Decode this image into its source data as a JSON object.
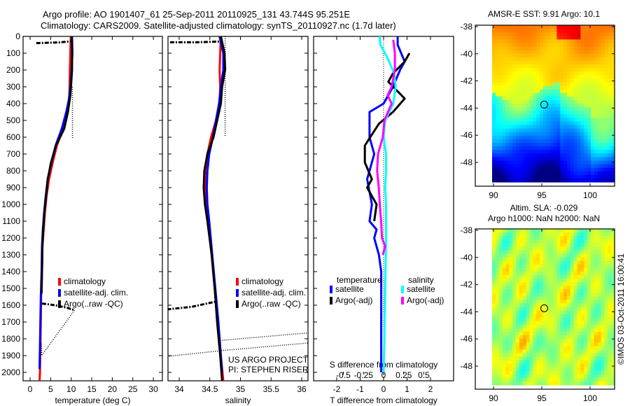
{
  "header": {
    "line1": "Argo profile: AO 1901407_61 25-Sep-2011 20110925_131 43.744S 95.251E",
    "line2": "Climatology: CARS2009. Satellite-adjusted climatology: synTS_20110927.nc (1.7d later)"
  },
  "colors": {
    "climatology": "#ff0000",
    "satellite": "#0000ff",
    "argo": "#000000",
    "sal_satellite": "#00ffff",
    "sal_argo": "#ff00ff"
  },
  "chart_data": [
    {
      "type": "line",
      "id": "temperature",
      "xlabel": "temperature (deg C)",
      "ylabel": "",
      "xlim": [
        -1.7,
        32
      ],
      "ylim": [
        2050,
        0
      ],
      "xticks": [
        0,
        5,
        10,
        15,
        20,
        25,
        30
      ],
      "yticks": [
        0,
        100,
        200,
        300,
        400,
        500,
        600,
        700,
        800,
        900,
        1000,
        1100,
        1200,
        1300,
        1400,
        1500,
        1600,
        1700,
        1800,
        1900,
        2000
      ],
      "legend": {
        "placement": "lower-middle",
        "entries": [
          "climatology",
          "satellite-adj. clim.",
          "Argo(..raw -QC)"
        ]
      },
      "series": [
        {
          "name": "climatology",
          "color": "#ff0000",
          "style": "solid",
          "x": [
            9.9,
            9.8,
            9.7,
            9.6,
            9.5,
            9.0,
            8.0,
            6.5,
            5.5,
            4.6,
            4.0,
            3.6,
            3.3,
            3.0,
            2.9,
            2.7,
            2.6,
            2.5,
            2.4,
            2.3
          ],
          "y": [
            0,
            100,
            200,
            300,
            380,
            450,
            550,
            650,
            750,
            850,
            950,
            1050,
            1150,
            1250,
            1400,
            1550,
            1700,
            1850,
            2000,
            2050
          ]
        },
        {
          "name": "satellite-adj. clim.",
          "color": "#0000ff",
          "style": "solid",
          "x": [
            10.2,
            10.3,
            10.1,
            9.8,
            9.4,
            8.8,
            7.7,
            6.2,
            5.2,
            4.3,
            3.8,
            3.4,
            3.1,
            2.9,
            2.8,
            2.6,
            2.5,
            2.4,
            2.3
          ],
          "y": [
            0,
            100,
            200,
            300,
            380,
            450,
            550,
            650,
            750,
            850,
            950,
            1050,
            1150,
            1250,
            1400,
            1550,
            1700,
            1850,
            1980
          ]
        },
        {
          "name": "Argo(..raw -QC)",
          "color": "#000000",
          "style": "solid",
          "x": [
            10.1,
            10.2,
            10.2,
            10.0,
            9.8,
            9.2,
            8.3,
            6.3,
            5.1,
            4.3,
            3.9,
            3.5,
            3.2,
            3.0,
            2.9,
            2.8
          ],
          "y": [
            0,
            100,
            200,
            280,
            350,
            450,
            550,
            650,
            750,
            850,
            950,
            1050,
            1150,
            1250,
            1400,
            1530
          ]
        },
        {
          "name": "Argo raw dashdot",
          "color": "#000000",
          "style": "dashdot",
          "x": [
            1.5,
            4,
            7,
            9.9
          ],
          "y": [
            40,
            38,
            36,
            30
          ]
        },
        {
          "name": "Argo raw dashdot deep",
          "color": "#000000",
          "style": "dashdot",
          "x": [
            2.9,
            6.0,
            9.0,
            10.8
          ],
          "y": [
            1590,
            1600,
            1615,
            1630
          ]
        },
        {
          "name": "Argo raw dotted",
          "color": "#000000",
          "style": "dotted",
          "x": [
            10.3,
            10.3,
            10.3
          ],
          "y": [
            300,
            450,
            610
          ]
        },
        {
          "name": "Argo raw dotted deep",
          "color": "#000000",
          "style": "dotted",
          "x": [
            10.8,
            2.8,
            2.8
          ],
          "y": [
            1630,
            1900,
            1820
          ]
        }
      ]
    },
    {
      "type": "line",
      "id": "salinity",
      "xlabel": "salinity",
      "xlim": [
        33.8,
        36.1
      ],
      "ylim": [
        2050,
        0
      ],
      "xticks": [
        34,
        34.5,
        35,
        35.5,
        36
      ],
      "legend": {
        "placement": "lower-right",
        "entries": [
          "climatology",
          "satellite-adj. clim.",
          "Argo(..raw -QC)"
        ]
      },
      "annotation": [
        "US ARGO PROJECT",
        "PI: STEPHEN RISER"
      ],
      "series": [
        {
          "name": "climatology",
          "color": "#ff0000",
          "style": "solid",
          "x": [
            34.68,
            34.67,
            34.66,
            34.67,
            34.66,
            34.6,
            34.52,
            34.46,
            34.44,
            34.43,
            34.45,
            34.48,
            34.53,
            34.58,
            34.63,
            34.68,
            34.72
          ],
          "y": [
            0,
            100,
            200,
            300,
            400,
            500,
            600,
            700,
            800,
            900,
            1000,
            1100,
            1300,
            1500,
            1700,
            1900,
            2050
          ]
        },
        {
          "name": "satellite-adj. clim.",
          "color": "#0000ff",
          "style": "solid",
          "x": [
            34.66,
            34.72,
            34.72,
            34.68,
            34.65,
            34.6,
            34.55,
            34.49,
            34.46,
            34.45,
            34.46,
            34.49,
            34.54,
            34.59,
            34.64,
            34.68,
            34.7
          ],
          "y": [
            0,
            100,
            200,
            300,
            400,
            500,
            600,
            700,
            800,
            900,
            1000,
            1100,
            1300,
            1500,
            1700,
            1900,
            2000
          ]
        },
        {
          "name": "Argo(..raw -QC)",
          "color": "#000000",
          "style": "solid",
          "x": [
            34.68,
            34.74,
            34.75,
            34.7,
            34.68,
            34.62,
            34.56,
            34.46,
            34.41,
            34.4,
            34.42,
            34.46,
            34.53,
            34.58,
            34.62,
            34.67,
            34.7
          ],
          "y": [
            0,
            100,
            200,
            300,
            400,
            500,
            600,
            700,
            800,
            900,
            1000,
            1100,
            1300,
            1500,
            1700,
            1900,
            2050
          ]
        },
        {
          "name": "Argo raw dashdot",
          "color": "#000000",
          "style": "dashdot",
          "x": [
            33.85,
            34.3,
            34.7
          ],
          "y": [
            35,
            35,
            30
          ]
        },
        {
          "name": "Argo raw dashdot deep",
          "color": "#000000",
          "style": "dashdot",
          "x": [
            33.8,
            34.2,
            34.58
          ],
          "y": [
            1625,
            1610,
            1580
          ]
        },
        {
          "name": "Argo raw dotted",
          "color": "#000000",
          "style": "dotted",
          "x": [
            34.75,
            34.75,
            34.75
          ],
          "y": [
            0,
            300,
            600
          ]
        },
        {
          "name": "Argo raw dotted deep 1",
          "color": "#000000",
          "style": "dotted",
          "x": [
            34.67,
            35.3,
            36.1
          ],
          "y": [
            1810,
            1790,
            1765
          ]
        },
        {
          "name": "Argo raw dotted deep 2",
          "color": "#000000",
          "style": "dotted",
          "x": [
            33.8,
            34.7,
            36.1
          ],
          "y": [
            1905,
            1870,
            1825
          ]
        }
      ]
    },
    {
      "type": "line",
      "id": "difference",
      "xlabel": "T difference from climatology",
      "x2label": "S difference from climatology",
      "xlim": [
        -3,
        3
      ],
      "x2lim": [
        -0.75,
        0.75
      ],
      "ylim": [
        2050,
        0
      ],
      "xticks": [
        -2,
        -1,
        0,
        1,
        2
      ],
      "x2ticks": [
        "-0.5",
        "-0.25",
        "0",
        "0.25",
        "0.5"
      ],
      "legend": {
        "placement": "lower-middle",
        "groups": [
          {
            "title": "temperature",
            "entries": [
              "satellite",
              "Argo(-adj)"
            ]
          },
          {
            "title": "salinity",
            "entries": [
              "satellite",
              "Argo(-adj)"
            ]
          }
        ]
      },
      "series": [
        {
          "name": "temperature satellite",
          "color": "#0000ff",
          "axis": "T",
          "x": [
            0.6,
            0.6,
            0.9,
            0.7,
            0.4,
            0.0,
            -0.6,
            -0.6,
            -0.4,
            -0.7,
            -0.5,
            -0.6,
            -0.3,
            -0.4,
            -0.2,
            -0.1,
            -0.1,
            -0.1
          ],
          "y": [
            0,
            50,
            150,
            200,
            300,
            400,
            450,
            600,
            700,
            850,
            1000,
            1100,
            1150,
            1200,
            1300,
            1400,
            1700,
            2000
          ]
        },
        {
          "name": "temperature Argo(-adj)",
          "color": "#000000",
          "axis": "T",
          "x": [
            1.1,
            0.9,
            0.4,
            0.2,
            0.9,
            0.4,
            -0.2,
            -0.8,
            -0.8,
            -0.5,
            -0.7,
            -0.3,
            -0.4
          ],
          "y": [
            100,
            150,
            220,
            270,
            370,
            450,
            520,
            650,
            750,
            850,
            900,
            1000,
            1100
          ]
        },
        {
          "name": "salinity satellite",
          "color": "#00ffff",
          "axis": "S",
          "x": [
            -0.05,
            -0.04,
            0.05,
            0.13,
            0.15,
            0.12,
            0.02,
            0.0,
            0.03,
            0.03,
            0.02,
            0.03,
            0.03,
            0.02,
            0.01,
            0.0
          ],
          "y": [
            0,
            50,
            130,
            220,
            300,
            400,
            500,
            600,
            700,
            800,
            900,
            1000,
            1200,
            1500,
            1800,
            2000
          ]
        },
        {
          "name": "salinity Argo(-adj)",
          "color": "#ff00ff",
          "axis": "S",
          "x": [
            0.12,
            0.14,
            0.14,
            0.1,
            0.05,
            0.1,
            0.01,
            -0.01,
            -0.07,
            -0.08,
            -0.06,
            -0.04,
            -0.03,
            -0.02,
            0.02,
            -0.01
          ],
          "y": [
            20,
            100,
            200,
            300,
            350,
            400,
            500,
            600,
            700,
            800,
            900,
            1050,
            1100,
            1200,
            1250,
            1300
          ]
        }
      ]
    },
    {
      "type": "heatmap",
      "id": "sst-map",
      "title": "AMSR-E SST: 9.91  Argo: 10.1",
      "xlim": [
        88.5,
        102.5
      ],
      "ylim": [
        -49.7,
        -37.8
      ],
      "xticks": [
        90,
        95,
        100
      ],
      "yticks": [
        -38,
        -40,
        -42,
        -44,
        -46,
        -48
      ],
      "marker": {
        "lon": 95.251,
        "lat": -43.744
      },
      "colormap": "jet",
      "description": "warm (red/orange/yellow) north of ~-43.5, cold (green/cyan/blue) south"
    },
    {
      "type": "heatmap",
      "id": "sla-map",
      "title": [
        "Altim. SLA: -0.029",
        "Argo h1000: NaN h2000: NaN"
      ],
      "xlim": [
        88.5,
        102.5
      ],
      "ylim": [
        -49.7,
        -37.8
      ],
      "xticks": [
        90,
        95,
        100
      ],
      "yticks": [
        -38,
        -40,
        -42,
        -44,
        -46,
        -48
      ],
      "marker": {
        "lon": 95.251,
        "lat": -43.744
      },
      "colormap": "jet",
      "side_label": "©IMOS 03-Oct-2011 16:00:41"
    }
  ]
}
